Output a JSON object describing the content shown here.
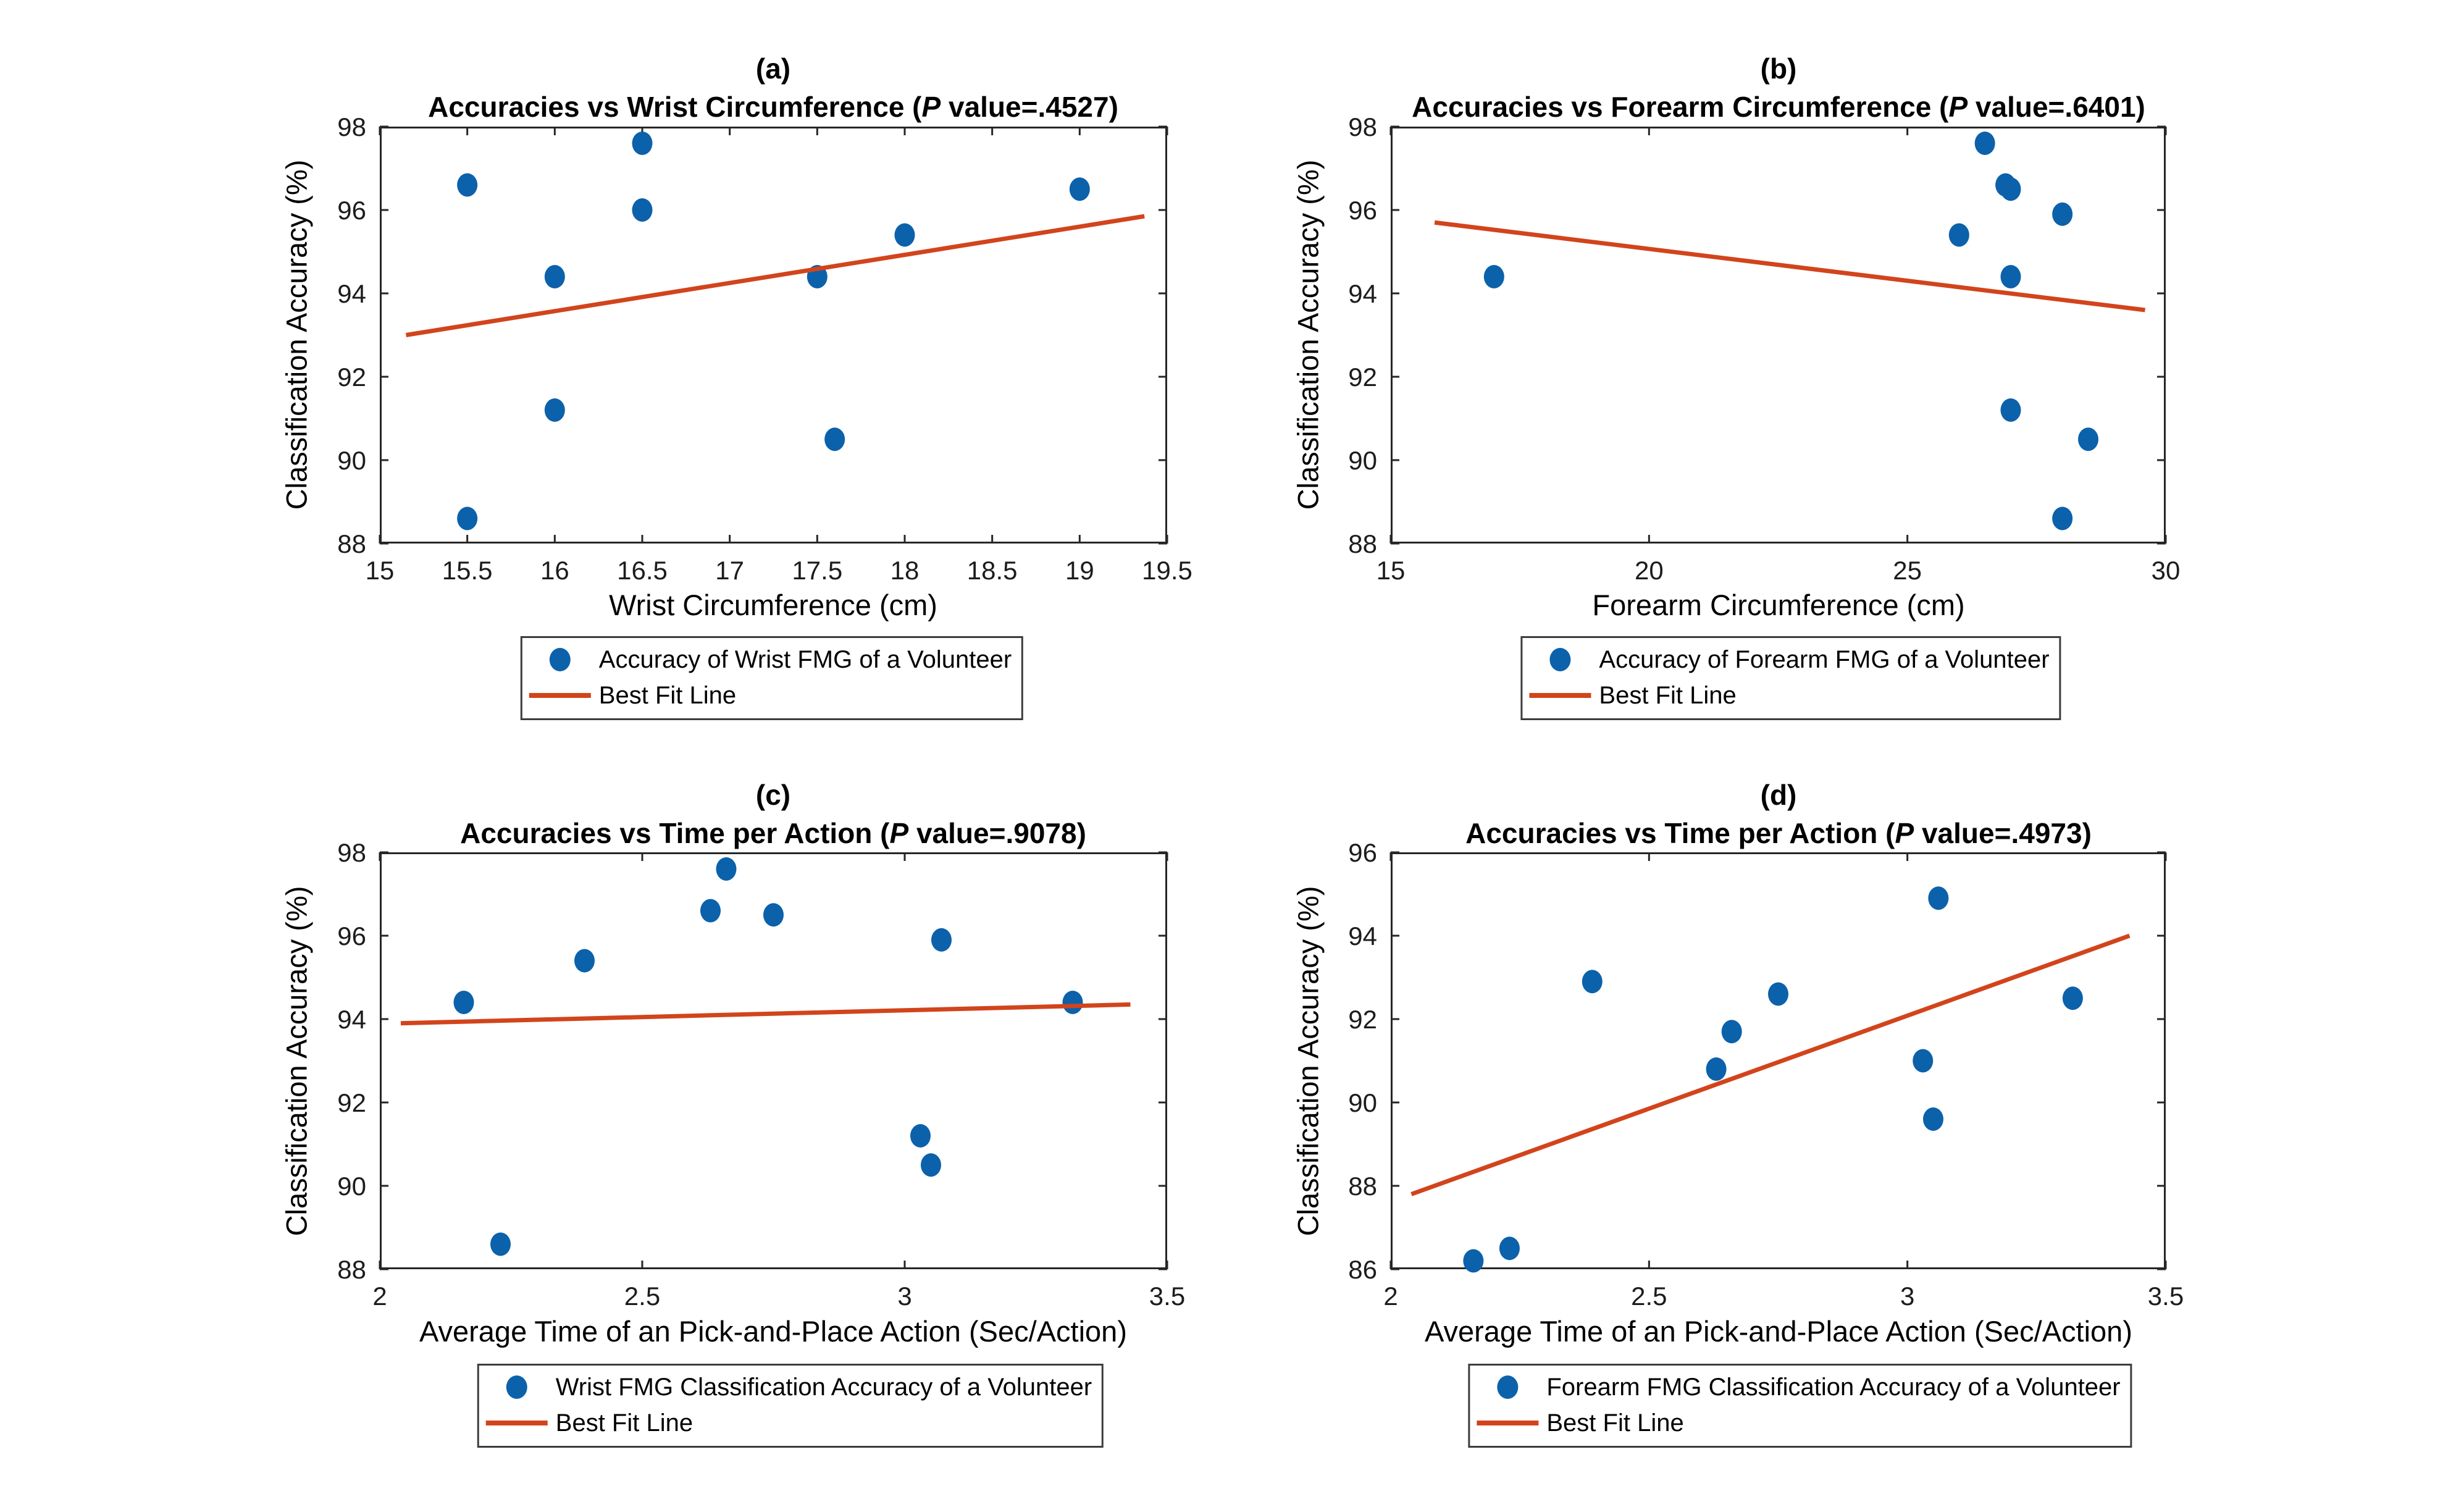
{
  "figure": {
    "background": "#ffffff"
  },
  "colors": {
    "marker": "#0c61ab",
    "fit_line": "#d2441c",
    "axis": "#262626",
    "tick_text": "#1c1c1c"
  },
  "chart_data": [
    {
      "type": "scatter",
      "panel_label": "(a)",
      "title_prefix": "Accuracies vs Wrist Circumference (",
      "title_p": "P",
      "title_suffix": " value=.4527)",
      "xlabel": "Wrist Circumference (cm)",
      "ylabel": "Classification Accuracy (%)",
      "xlim": [
        15,
        19.5
      ],
      "ylim": [
        88,
        98
      ],
      "xticks": [
        15,
        15.5,
        16,
        16.5,
        17,
        17.5,
        18,
        18.5,
        19,
        19.5
      ],
      "yticks": [
        88,
        90,
        92,
        94,
        96,
        98
      ],
      "grid": false,
      "legend_position": "below-center",
      "points": [
        [
          15.5,
          96.6
        ],
        [
          15.5,
          88.6
        ],
        [
          16,
          94.4
        ],
        [
          16,
          91.2
        ],
        [
          16.5,
          97.6
        ],
        [
          16.5,
          96.0
        ],
        [
          17.5,
          94.4
        ],
        [
          17.6,
          90.5
        ],
        [
          18,
          95.4
        ],
        [
          19,
          96.5
        ]
      ],
      "fit_line": {
        "x1": 15.15,
        "y1": 93.0,
        "x2": 19.37,
        "y2": 95.85
      },
      "legend": [
        "Accuracy of Wrist FMG of a Volunteer",
        "Best Fit Line"
      ]
    },
    {
      "type": "scatter",
      "panel_label": "(b)",
      "title_prefix": "Accuracies vs Forearm Circumference (",
      "title_p": "P",
      "title_suffix": " value=.6401)",
      "xlabel": "Forearm Circumference (cm)",
      "ylabel": "Classification Accuracy (%)",
      "xlim": [
        15,
        30
      ],
      "ylim": [
        88,
        98
      ],
      "xticks": [
        15,
        20,
        25,
        30
      ],
      "yticks": [
        88,
        90,
        92,
        94,
        96,
        98
      ],
      "grid": false,
      "legend_position": "below-center",
      "points": [
        [
          17,
          94.4
        ],
        [
          26,
          95.4
        ],
        [
          26.5,
          97.6
        ],
        [
          26.9,
          96.6
        ],
        [
          27,
          96.5
        ],
        [
          27,
          94.4
        ],
        [
          27,
          91.2
        ],
        [
          28,
          95.9
        ],
        [
          28,
          88.6
        ],
        [
          28.5,
          90.5
        ]
      ],
      "fit_line": {
        "x1": 15.85,
        "y1": 95.7,
        "x2": 29.6,
        "y2": 93.6
      },
      "legend": [
        "Accuracy of Forearm FMG of a Volunteer",
        "Best Fit Line"
      ]
    },
    {
      "type": "scatter",
      "panel_label": "(c)",
      "title_prefix": "Accuracies vs Time per Action (",
      "title_p": "P",
      "title_suffix": " value=.9078)",
      "xlabel": "Average Time of an Pick-and-Place Action (Sec/Action)",
      "ylabel": "Classification Accuracy (%)",
      "xlim": [
        2,
        3.5
      ],
      "ylim": [
        88,
        98
      ],
      "xticks": [
        2,
        2.5,
        3,
        3.5
      ],
      "yticks": [
        88,
        90,
        92,
        94,
        96,
        98
      ],
      "grid": false,
      "legend_position": "below-center",
      "points": [
        [
          2.16,
          94.4
        ],
        [
          2.23,
          88.6
        ],
        [
          2.39,
          95.4
        ],
        [
          2.63,
          96.6
        ],
        [
          2.66,
          97.6
        ],
        [
          2.75,
          96.5
        ],
        [
          3.03,
          91.2
        ],
        [
          3.05,
          90.5
        ],
        [
          3.07,
          95.9
        ],
        [
          3.32,
          94.4
        ]
      ],
      "fit_line": {
        "x1": 2.04,
        "y1": 93.9,
        "x2": 3.43,
        "y2": 94.35
      },
      "legend": [
        "Wrist FMG Classification Accuracy of a Volunteer",
        "Best Fit Line"
      ]
    },
    {
      "type": "scatter",
      "panel_label": "(d)",
      "title_prefix": "Accuracies vs Time per Action (",
      "title_p": "P",
      "title_suffix": " value=.4973)",
      "xlabel": "Average Time of an Pick-and-Place Action (Sec/Action)",
      "ylabel": "Classification Accuracy (%)",
      "xlim": [
        2,
        3.5
      ],
      "ylim": [
        86,
        96
      ],
      "xticks": [
        2,
        2.5,
        3,
        3.5
      ],
      "yticks": [
        86,
        88,
        90,
        92,
        94,
        96
      ],
      "grid": false,
      "legend_position": "below-center",
      "points": [
        [
          2.16,
          86.2
        ],
        [
          2.23,
          86.5
        ],
        [
          2.39,
          92.9
        ],
        [
          2.63,
          90.8
        ],
        [
          2.66,
          91.7
        ],
        [
          2.75,
          92.6
        ],
        [
          3.03,
          91.0
        ],
        [
          3.05,
          89.6
        ],
        [
          3.06,
          94.9
        ],
        [
          3.32,
          92.5
        ]
      ],
      "fit_line": {
        "x1": 2.04,
        "y1": 87.8,
        "x2": 3.43,
        "y2": 94.0
      },
      "legend": [
        "Forearm FMG Classification Accuracy of a Volunteer",
        "Best Fit Line"
      ]
    }
  ]
}
